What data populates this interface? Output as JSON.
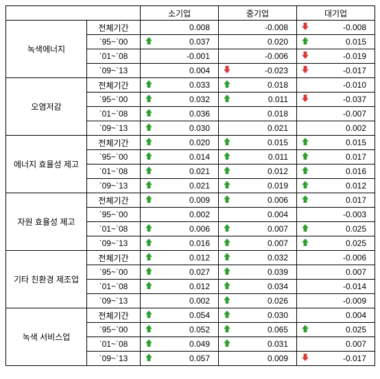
{
  "columns": [
    "소기업",
    "중기업",
    "대기업"
  ],
  "groups": [
    {
      "label": "녹색에너지",
      "rows": [
        {
          "period": "전체기간",
          "vals": [
            {
              "v": "0.008",
              "a": null
            },
            {
              "v": "-0.008",
              "a": null
            },
            {
              "v": "-0.008",
              "a": "down"
            }
          ]
        },
        {
          "period": "`95~`00",
          "vals": [
            {
              "v": "0.037",
              "a": "up"
            },
            {
              "v": "0.020",
              "a": null
            },
            {
              "v": "0.015",
              "a": "up"
            }
          ]
        },
        {
          "period": "`01~`08",
          "vals": [
            {
              "v": "-0.001",
              "a": null
            },
            {
              "v": "-0.006",
              "a": null
            },
            {
              "v": "-0.019",
              "a": "down"
            }
          ]
        },
        {
          "period": "`09~`13",
          "vals": [
            {
              "v": "0.004",
              "a": null
            },
            {
              "v": "-0.023",
              "a": "down"
            },
            {
              "v": "-0.017",
              "a": "down"
            }
          ]
        }
      ]
    },
    {
      "label": "오염저감",
      "rows": [
        {
          "period": "전체기간",
          "vals": [
            {
              "v": "0.033",
              "a": "up"
            },
            {
              "v": "0.018",
              "a": "up"
            },
            {
              "v": "-0.010",
              "a": null
            }
          ]
        },
        {
          "period": "`95~`00",
          "vals": [
            {
              "v": "0.032",
              "a": "up"
            },
            {
              "v": "0.011",
              "a": "up"
            },
            {
              "v": "-0.037",
              "a": "down"
            }
          ]
        },
        {
          "period": "`01~`08",
          "vals": [
            {
              "v": "0.036",
              "a": "up"
            },
            {
              "v": "0.018",
              "a": null
            },
            {
              "v": "-0.007",
              "a": null
            }
          ]
        },
        {
          "period": "`09~`13",
          "vals": [
            {
              "v": "0.030",
              "a": "up"
            },
            {
              "v": "0.021",
              "a": null
            },
            {
              "v": "0.002",
              "a": null
            }
          ]
        }
      ]
    },
    {
      "label": "에너지 효율성 제고",
      "rows": [
        {
          "period": "전체기간",
          "vals": [
            {
              "v": "0.020",
              "a": "up"
            },
            {
              "v": "0.015",
              "a": "up"
            },
            {
              "v": "0.015",
              "a": "up"
            }
          ]
        },
        {
          "period": "`95~`00",
          "vals": [
            {
              "v": "0.014",
              "a": "up"
            },
            {
              "v": "0.011",
              "a": "up"
            },
            {
              "v": "0.017",
              "a": "up"
            }
          ]
        },
        {
          "period": "`01~`08",
          "vals": [
            {
              "v": "0.021",
              "a": "up"
            },
            {
              "v": "0.012",
              "a": "up"
            },
            {
              "v": "0.016",
              "a": "up"
            }
          ]
        },
        {
          "period": "`09~`13",
          "vals": [
            {
              "v": "0.021",
              "a": "up"
            },
            {
              "v": "0.019",
              "a": "up"
            },
            {
              "v": "0.012",
              "a": "up"
            }
          ]
        }
      ]
    },
    {
      "label": "자원 효율성 제고",
      "rows": [
        {
          "period": "전체기간",
          "vals": [
            {
              "v": "0.009",
              "a": "up"
            },
            {
              "v": "0.006",
              "a": "up"
            },
            {
              "v": "0.017",
              "a": "up"
            }
          ]
        },
        {
          "period": "`95~`00",
          "vals": [
            {
              "v": "0.002",
              "a": null
            },
            {
              "v": "0.004",
              "a": null
            },
            {
              "v": "-0.003",
              "a": null
            }
          ]
        },
        {
          "period": "`01~`08",
          "vals": [
            {
              "v": "0.006",
              "a": "up"
            },
            {
              "v": "0.007",
              "a": "up"
            },
            {
              "v": "0.025",
              "a": "up"
            }
          ]
        },
        {
          "period": "`09~`13",
          "vals": [
            {
              "v": "0.016",
              "a": "up"
            },
            {
              "v": "0.007",
              "a": "up"
            },
            {
              "v": "0.025",
              "a": "up"
            }
          ]
        }
      ]
    },
    {
      "label": "기타 친환경 제조업",
      "rows": [
        {
          "period": "전체기간",
          "vals": [
            {
              "v": "0.012",
              "a": "up"
            },
            {
              "v": "0.032",
              "a": "up"
            },
            {
              "v": "-0.006",
              "a": null
            }
          ]
        },
        {
          "period": "`95~`00",
          "vals": [
            {
              "v": "0.027",
              "a": "up"
            },
            {
              "v": "0.039",
              "a": "up"
            },
            {
              "v": "0.007",
              "a": null
            }
          ]
        },
        {
          "period": "`01~`08",
          "vals": [
            {
              "v": "0.012",
              "a": "up"
            },
            {
              "v": "0.034",
              "a": "up"
            },
            {
              "v": "-0.014",
              "a": null
            }
          ]
        },
        {
          "period": "`09~`13",
          "vals": [
            {
              "v": "0.002",
              "a": null
            },
            {
              "v": "0.026",
              "a": "up"
            },
            {
              "v": "-0.009",
              "a": null
            }
          ]
        }
      ]
    },
    {
      "label": "녹색 서비스업",
      "rows": [
        {
          "period": "전체기간",
          "vals": [
            {
              "v": "0.054",
              "a": "up"
            },
            {
              "v": "0.030",
              "a": "up"
            },
            {
              "v": "0.004",
              "a": null
            }
          ]
        },
        {
          "period": "`95~`00",
          "vals": [
            {
              "v": "0.052",
              "a": "up"
            },
            {
              "v": "0.065",
              "a": "up"
            },
            {
              "v": "0.025",
              "a": "up"
            }
          ]
        },
        {
          "period": "`01~`08",
          "vals": [
            {
              "v": "0.049",
              "a": "up"
            },
            {
              "v": "0.031",
              "a": "up"
            },
            {
              "v": "0.007",
              "a": null
            }
          ]
        },
        {
          "period": "`09~`13",
          "vals": [
            {
              "v": "0.057",
              "a": "up"
            },
            {
              "v": "0.009",
              "a": null
            },
            {
              "v": "-0.017",
              "a": "down"
            }
          ]
        }
      ]
    }
  ],
  "arrow_colors": {
    "up": "#2e9e2e",
    "down": "#d93a3a"
  }
}
